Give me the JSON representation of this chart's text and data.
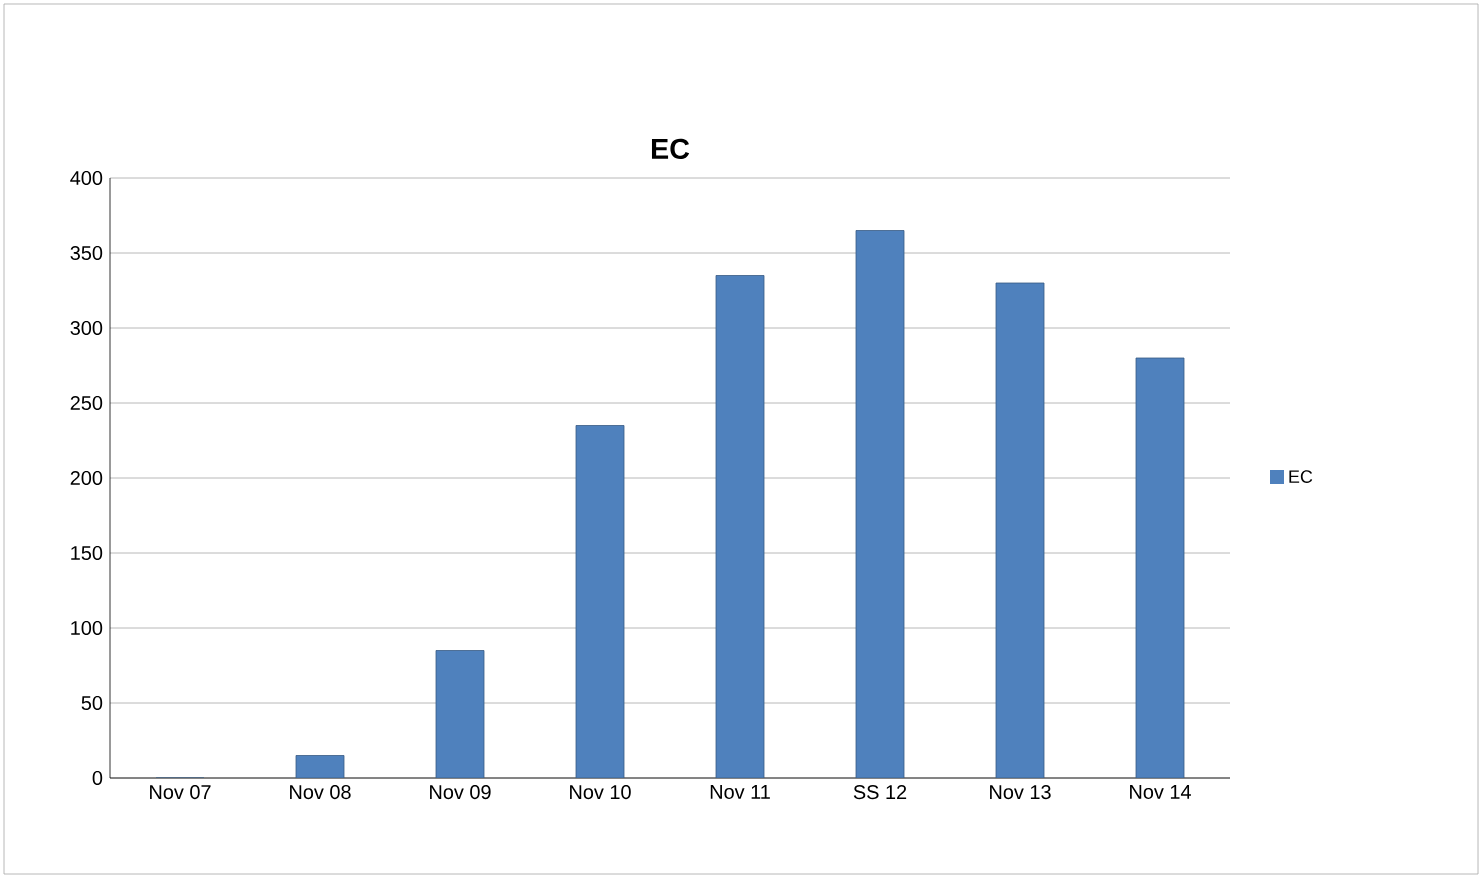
{
  "chart_data": {
    "type": "bar",
    "title": "EC",
    "categories": [
      "Nov 07",
      "Nov 08",
      "Nov 09",
      "Nov 10",
      "Nov 11",
      "SS 12",
      "Nov 13",
      "Nov 14"
    ],
    "series": [
      {
        "name": "EC",
        "color": "#4f81bd",
        "values": [
          0,
          15,
          85,
          235,
          335,
          365,
          330,
          280
        ]
      }
    ],
    "ylim": [
      0,
      400
    ],
    "yticks": [
      0,
      50,
      100,
      150,
      200,
      250,
      300,
      350,
      400
    ],
    "grid": "y",
    "legend": "right"
  }
}
